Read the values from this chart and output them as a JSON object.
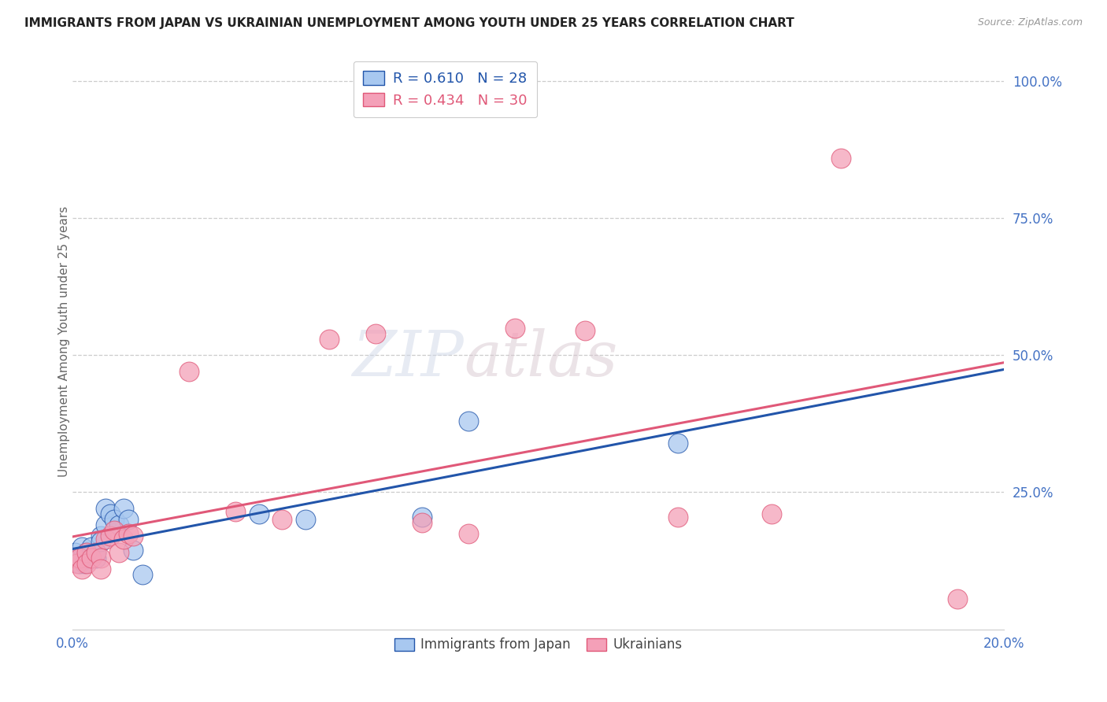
{
  "title": "IMMIGRANTS FROM JAPAN VS UKRAINIAN UNEMPLOYMENT AMONG YOUTH UNDER 25 YEARS CORRELATION CHART",
  "source": "Source: ZipAtlas.com",
  "ylabel": "Unemployment Among Youth under 25 years",
  "legend_bottom": [
    "Immigrants from Japan",
    "Ukrainians"
  ],
  "xlim": [
    0.0,
    0.2
  ],
  "ylim": [
    0.0,
    1.05
  ],
  "right_yticks": [
    1.0,
    0.75,
    0.5,
    0.25
  ],
  "right_ytick_labels": [
    "100.0%",
    "75.0%",
    "50.0%",
    "25.0%"
  ],
  "xtick_labels": [
    "0.0%",
    "20.0%"
  ],
  "xtick_positions": [
    0.0,
    0.2
  ],
  "R_japan": 0.61,
  "N_japan": 28,
  "R_ukraine": 0.434,
  "N_ukraine": 30,
  "color_japan": "#A8C8F0",
  "color_ukraine": "#F4A0B8",
  "line_color_japan": "#2255AA",
  "line_color_ukraine": "#E05878",
  "watermark_zip": "ZIP",
  "watermark_atlas": "atlas",
  "japan_x": [
    0.0005,
    0.001,
    0.0015,
    0.002,
    0.002,
    0.0025,
    0.003,
    0.003,
    0.004,
    0.004,
    0.005,
    0.005,
    0.006,
    0.006,
    0.007,
    0.007,
    0.008,
    0.009,
    0.01,
    0.011,
    0.012,
    0.013,
    0.015,
    0.04,
    0.05,
    0.075,
    0.085,
    0.13
  ],
  "japan_y": [
    0.14,
    0.13,
    0.12,
    0.13,
    0.15,
    0.12,
    0.14,
    0.13,
    0.15,
    0.13,
    0.13,
    0.14,
    0.17,
    0.16,
    0.19,
    0.22,
    0.21,
    0.2,
    0.19,
    0.22,
    0.2,
    0.145,
    0.1,
    0.21,
    0.2,
    0.205,
    0.38,
    0.34
  ],
  "ukraine_x": [
    0.0005,
    0.001,
    0.0015,
    0.002,
    0.003,
    0.003,
    0.004,
    0.005,
    0.006,
    0.006,
    0.007,
    0.008,
    0.009,
    0.01,
    0.011,
    0.012,
    0.013,
    0.025,
    0.035,
    0.045,
    0.055,
    0.065,
    0.075,
    0.085,
    0.095,
    0.11,
    0.13,
    0.15,
    0.165,
    0.19
  ],
  "ukraine_y": [
    0.13,
    0.12,
    0.13,
    0.11,
    0.14,
    0.12,
    0.13,
    0.14,
    0.13,
    0.11,
    0.165,
    0.17,
    0.18,
    0.14,
    0.165,
    0.175,
    0.17,
    0.47,
    0.215,
    0.2,
    0.53,
    0.54,
    0.195,
    0.175,
    0.55,
    0.545,
    0.205,
    0.21,
    0.86,
    0.055
  ]
}
